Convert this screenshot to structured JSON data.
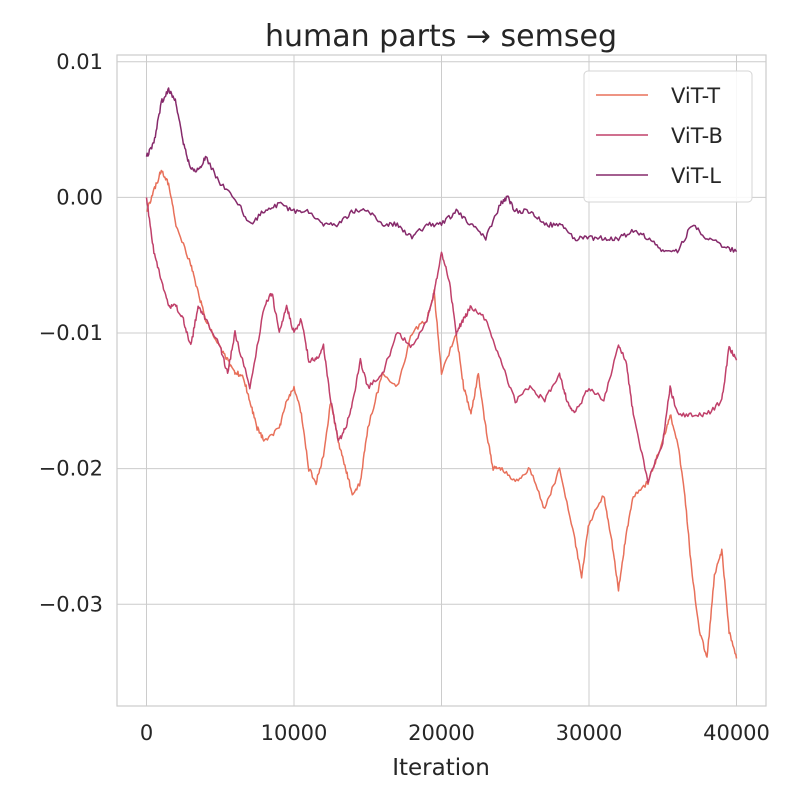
{
  "chart_data": {
    "type": "line",
    "title": "human parts → semseg",
    "xlabel": "Iteration",
    "ylabel": "",
    "xlim": [
      -2000,
      42000
    ],
    "ylim": [
      -0.0375,
      0.0105
    ],
    "xticks": [
      0,
      10000,
      20000,
      30000,
      40000
    ],
    "xtick_labels": [
      "0",
      "10000",
      "20000",
      "30000",
      "40000"
    ],
    "yticks": [
      0.01,
      0.0,
      -0.01,
      -0.02,
      -0.03
    ],
    "ytick_labels": [
      "0.01",
      "0.00",
      "−0.01",
      "−0.02",
      "−0.03"
    ],
    "grid": true,
    "legend_position": "top-right",
    "series": [
      {
        "name": "ViT-T",
        "color": "#e8705a",
        "x": [
          0,
          500,
          1000,
          1500,
          2000,
          3000,
          3500,
          4000,
          5000,
          5500,
          6000,
          6500,
          7000,
          7500,
          8000,
          9000,
          9500,
          10000,
          10500,
          11000,
          11500,
          12000,
          12500,
          13000,
          13500,
          14000,
          14500,
          15000,
          16000,
          17000,
          18000,
          19000,
          19500,
          20000,
          21000,
          21500,
          22000,
          22500,
          23000,
          23500,
          24000,
          25000,
          26000,
          27000,
          28000,
          29000,
          29500,
          30000,
          31000,
          31500,
          32000,
          32500,
          33000,
          34000,
          35000,
          35500,
          36000,
          36500,
          37000,
          37500,
          38000,
          38500,
          39000,
          39500,
          40000
        ],
        "y": [
          -0.001,
          0.0005,
          0.002,
          0.001,
          -0.002,
          -0.005,
          -0.007,
          -0.009,
          -0.011,
          -0.012,
          -0.013,
          -0.013,
          -0.015,
          -0.017,
          -0.018,
          -0.017,
          -0.015,
          -0.014,
          -0.016,
          -0.02,
          -0.021,
          -0.019,
          -0.015,
          -0.018,
          -0.02,
          -0.022,
          -0.021,
          -0.017,
          -0.013,
          -0.014,
          -0.01,
          -0.009,
          -0.007,
          -0.013,
          -0.01,
          -0.014,
          -0.016,
          -0.013,
          -0.017,
          -0.02,
          -0.02,
          -0.021,
          -0.02,
          -0.023,
          -0.02,
          -0.025,
          -0.028,
          -0.024,
          -0.022,
          -0.025,
          -0.029,
          -0.025,
          -0.022,
          -0.021,
          -0.018,
          -0.016,
          -0.018,
          -0.022,
          -0.028,
          -0.032,
          -0.034,
          -0.028,
          -0.026,
          -0.032,
          -0.034
        ]
      },
      {
        "name": "ViT-B",
        "color": "#c0406a",
        "x": [
          0,
          500,
          1000,
          1500,
          2000,
          2500,
          3000,
          3500,
          4000,
          5000,
          5500,
          6000,
          7000,
          8000,
          8500,
          9000,
          9500,
          10000,
          10500,
          11000,
          11500,
          12000,
          12500,
          13000,
          13500,
          14000,
          14500,
          15000,
          16000,
          17000,
          18000,
          19000,
          19500,
          20000,
          20500,
          21000,
          21500,
          22000,
          23000,
          24000,
          25000,
          26000,
          27000,
          28000,
          28500,
          29000,
          30000,
          31000,
          32000,
          32500,
          33000,
          34000,
          35000,
          35500,
          36000,
          37000,
          38000,
          39000,
          39500,
          40000
        ],
        "y": [
          0.0,
          -0.004,
          -0.006,
          -0.008,
          -0.008,
          -0.009,
          -0.011,
          -0.008,
          -0.009,
          -0.011,
          -0.013,
          -0.01,
          -0.014,
          -0.008,
          -0.007,
          -0.01,
          -0.008,
          -0.01,
          -0.009,
          -0.012,
          -0.012,
          -0.011,
          -0.015,
          -0.018,
          -0.017,
          -0.015,
          -0.012,
          -0.014,
          -0.013,
          -0.01,
          -0.011,
          -0.009,
          -0.007,
          -0.004,
          -0.006,
          -0.01,
          -0.009,
          -0.008,
          -0.009,
          -0.012,
          -0.015,
          -0.014,
          -0.015,
          -0.013,
          -0.015,
          -0.016,
          -0.014,
          -0.015,
          -0.011,
          -0.012,
          -0.016,
          -0.021,
          -0.018,
          -0.014,
          -0.016,
          -0.016,
          -0.016,
          -0.015,
          -0.011,
          -0.012
        ]
      },
      {
        "name": "ViT-L",
        "color": "#862a6b",
        "x": [
          0,
          500,
          1000,
          1500,
          2000,
          2500,
          3000,
          3500,
          4000,
          5000,
          6000,
          7000,
          8000,
          9000,
          10000,
          11000,
          12000,
          13000,
          14000,
          15000,
          16000,
          17000,
          18000,
          19000,
          20000,
          21000,
          22000,
          23000,
          24000,
          24500,
          25000,
          26000,
          27000,
          28000,
          29000,
          30000,
          31000,
          32000,
          33000,
          34000,
          35000,
          36000,
          37000,
          38000,
          39000,
          40000
        ],
        "y": [
          0.003,
          0.004,
          0.007,
          0.008,
          0.007,
          0.004,
          0.002,
          0.002,
          0.003,
          0.001,
          0.0,
          -0.002,
          -0.001,
          -0.0005,
          -0.001,
          -0.001,
          -0.002,
          -0.002,
          -0.001,
          -0.001,
          -0.002,
          -0.002,
          -0.003,
          -0.002,
          -0.002,
          -0.001,
          -0.002,
          -0.003,
          -0.0005,
          0.0,
          -0.001,
          -0.001,
          -0.002,
          -0.002,
          -0.003,
          -0.003,
          -0.003,
          -0.003,
          -0.0025,
          -0.003,
          -0.004,
          -0.004,
          -0.002,
          -0.003,
          -0.0035,
          -0.004
        ]
      }
    ]
  }
}
